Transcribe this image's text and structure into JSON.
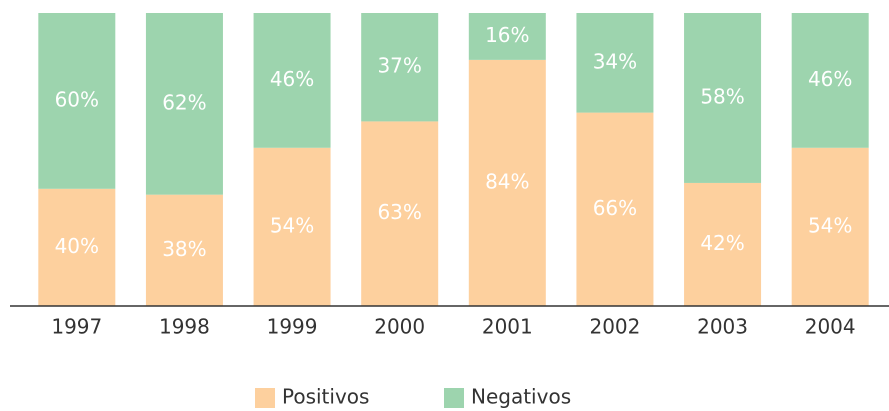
{
  "chart_data": {
    "type": "bar",
    "stacked": true,
    "categories": [
      "1997",
      "1998",
      "1999",
      "2000",
      "2001",
      "2002",
      "2003",
      "2004"
    ],
    "series": [
      {
        "name": "Positivos",
        "color": "#fdd09e",
        "values": [
          40,
          38,
          54,
          63,
          84,
          66,
          42,
          54
        ],
        "value_labels": [
          "40%",
          "38%",
          "54%",
          "63%",
          "84%",
          "66%",
          "42%",
          "54%"
        ]
      },
      {
        "name": "Negativos",
        "color": "#9dd4ae",
        "values": [
          60,
          62,
          46,
          37,
          16,
          34,
          58,
          46
        ],
        "value_labels": [
          "60%",
          "62%",
          "46%",
          "37%",
          "16%",
          "34%",
          "58%",
          "46%"
        ]
      }
    ],
    "ylim": [
      0,
      100
    ],
    "legend": "bottom"
  }
}
